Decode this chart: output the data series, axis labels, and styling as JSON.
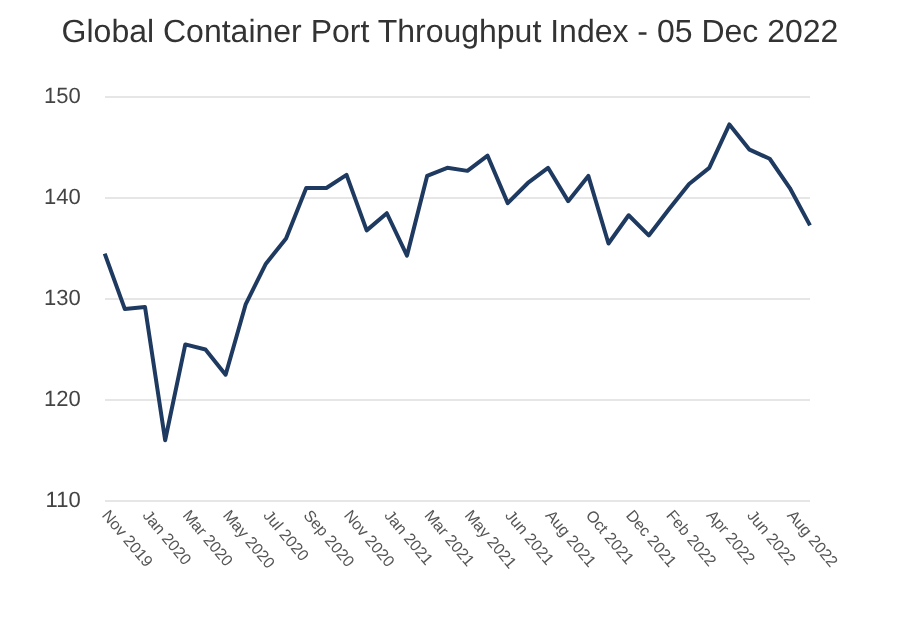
{
  "chart_data": {
    "type": "line",
    "title": "Global Container Port Throughput Index - 05 Dec 2022",
    "categories": [
      "Nov 2019",
      null,
      "Jan 2020",
      null,
      "Mar 2020",
      null,
      "May 2020",
      null,
      "Jul 2020",
      null,
      "Sep 2020",
      null,
      "Nov 2020",
      null,
      "Jan 2021",
      null,
      "Mar 2021",
      null,
      "May 2021",
      null,
      "Jun 2021",
      null,
      "Aug 2021",
      null,
      "Oct 2021",
      null,
      "Dec 2021",
      null,
      "Feb 2022",
      null,
      "Apr 2022",
      null,
      "Jun 2022",
      null,
      "Aug 2022",
      null
    ],
    "series": [
      {
        "color": "#1f3a60",
        "values": [
          134.5,
          129,
          129.2,
          116,
          125.5,
          125,
          122.5,
          129.5,
          133.5,
          136,
          141,
          141,
          142.3,
          136.8,
          138.5,
          134.3,
          142.2,
          143,
          142.7,
          144.2,
          139.5,
          141.5,
          143,
          139.7,
          142.2,
          135.5,
          138.3,
          136.3,
          138.9,
          141.4,
          143,
          147.3,
          144.8,
          143.9,
          141,
          137.3
        ]
      }
    ],
    "ylim": [
      110,
      150
    ],
    "yticks": [
      110,
      120,
      130,
      140,
      150
    ],
    "grid": "y",
    "legend": false,
    "marker": "none",
    "line_style": "solid"
  }
}
